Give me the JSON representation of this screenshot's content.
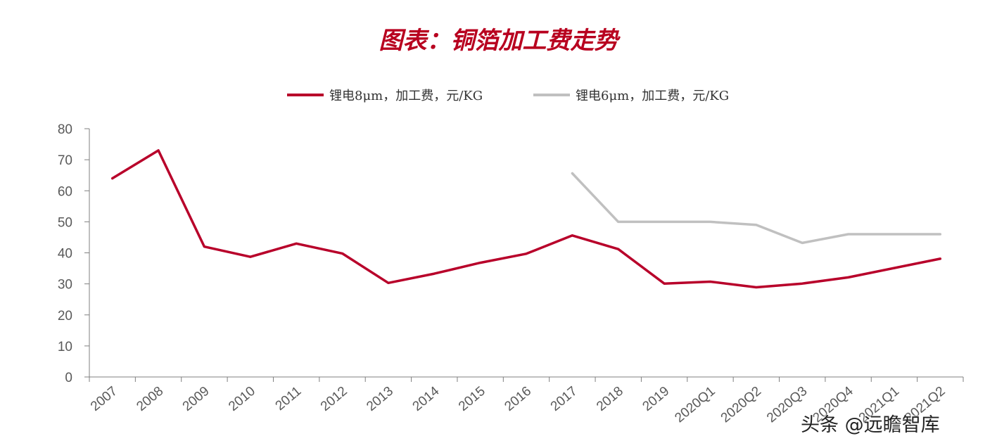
{
  "title": "图表：铜箔加工费走势",
  "watermark": "头条 @远瞻智库",
  "colors": {
    "series1": "#b8002a",
    "series2": "#c0c0c0",
    "axis": "#7f7f7f",
    "title": "#b8001f"
  },
  "chart_data": {
    "type": "line",
    "title": "图表：铜箔加工费走势",
    "xlabel": "",
    "ylabel": "",
    "ylim": [
      0,
      80
    ],
    "yticks": [
      0,
      10,
      20,
      30,
      40,
      50,
      60,
      70,
      80
    ],
    "grid": false,
    "legend_position": "top",
    "categories": [
      "2007",
      "2008",
      "2009",
      "2010",
      "2011",
      "2012",
      "2013",
      "2014",
      "2015",
      "2016",
      "2017",
      "2018",
      "2019",
      "2020Q1",
      "2020Q2",
      "2020Q3",
      "2020Q4",
      "2021Q1",
      "2021Q2"
    ],
    "series": [
      {
        "name": "锂电8μm，加工费，元/KG",
        "color": "#b8002a",
        "values": [
          64,
          73,
          42,
          38.7,
          43,
          39.8,
          30.3,
          33.3,
          36.8,
          39.7,
          45.6,
          41.2,
          30.1,
          30.7,
          28.9,
          30.1,
          32.1,
          35.1,
          38.1
        ]
      },
      {
        "name": "锂电6μm，加工费，元/KG",
        "color": "#c0c0c0",
        "values": [
          null,
          null,
          null,
          null,
          null,
          null,
          null,
          null,
          null,
          null,
          65.6,
          50,
          50,
          50,
          49,
          43.2,
          46,
          46,
          46
        ]
      }
    ]
  }
}
